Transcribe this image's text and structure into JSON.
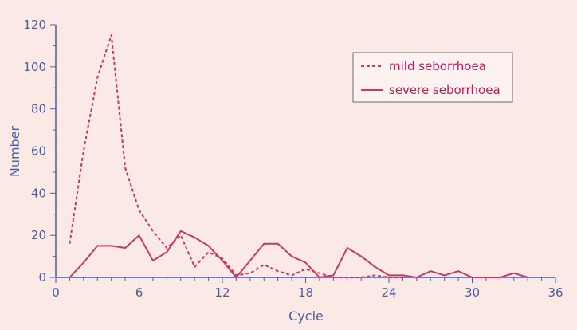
{
  "chart_data": {
    "type": "line",
    "xlabel": "Cycle",
    "ylabel": "Number",
    "xlim": [
      0,
      36
    ],
    "ylim": [
      0,
      120
    ],
    "x_ticks": [
      "0",
      "6",
      "12",
      "18",
      "24",
      "30",
      "36"
    ],
    "y_ticks": [
      "0",
      "20",
      "40",
      "60",
      "80",
      "100",
      "120"
    ],
    "grid": false,
    "legend_position": "top-right",
    "colors": {
      "line": "#c43a64",
      "axis": "#4a5ea8",
      "background": "#fbe9e6"
    },
    "series": [
      {
        "name": "mild seborrhoea",
        "style": "dashed",
        "x": [
          1,
          2,
          3,
          4,
          5,
          6,
          7,
          8,
          9,
          10,
          11,
          12,
          13,
          14,
          15,
          16,
          17,
          18,
          19,
          20,
          21,
          22,
          23,
          24,
          25
        ],
        "y": [
          16,
          60,
          95,
          115,
          52,
          32,
          22,
          14,
          20,
          5,
          12,
          9,
          1,
          2,
          6,
          3,
          1,
          4,
          2,
          0,
          0,
          0,
          1,
          0,
          0
        ]
      },
      {
        "name": "severe seborrhoea",
        "style": "solid",
        "x": [
          1,
          2,
          3,
          4,
          5,
          6,
          7,
          8,
          9,
          10,
          11,
          12,
          13,
          14,
          15,
          16,
          17,
          18,
          19,
          20,
          21,
          22,
          23,
          24,
          25,
          26,
          27,
          28,
          29,
          30,
          31,
          32,
          33,
          34
        ],
        "y": [
          0,
          7,
          15,
          15,
          14,
          20,
          8,
          12,
          22,
          19,
          15,
          8,
          0,
          8,
          16,
          16,
          10,
          7,
          0,
          1,
          14,
          10,
          5,
          1,
          1,
          0,
          3,
          1,
          3,
          0,
          0,
          0,
          2,
          0
        ]
      }
    ]
  }
}
